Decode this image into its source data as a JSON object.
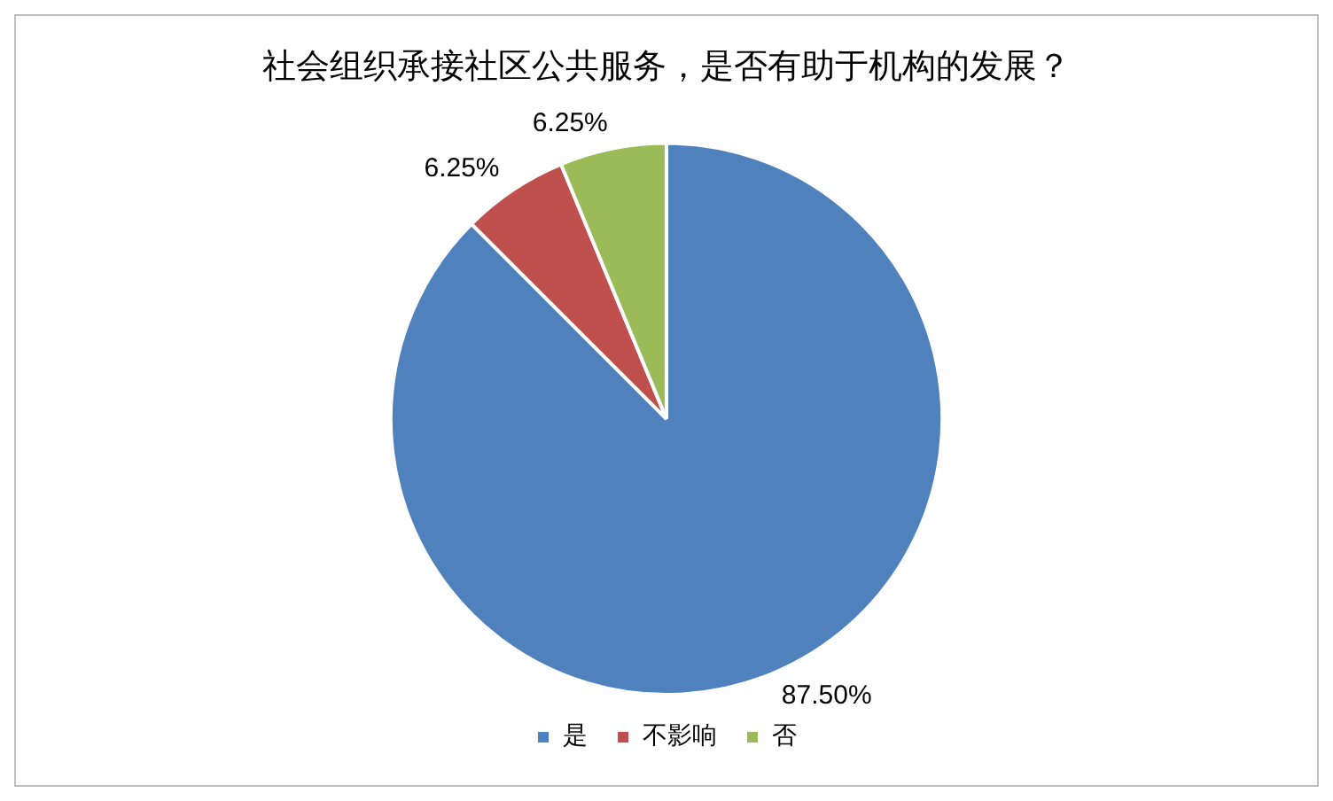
{
  "chart_data": {
    "type": "pie",
    "title": "社会组织承接社区公共服务，是否有助于机构的发展？",
    "categories": [
      "是",
      "不影响",
      "否"
    ],
    "values": [
      87.5,
      6.25,
      6.25
    ],
    "colors": [
      "#4f81bd",
      "#c0504d",
      "#9bbb59"
    ],
    "value_labels": [
      "87.50%",
      "6.25%",
      "6.25%"
    ],
    "legend": "bottom"
  }
}
